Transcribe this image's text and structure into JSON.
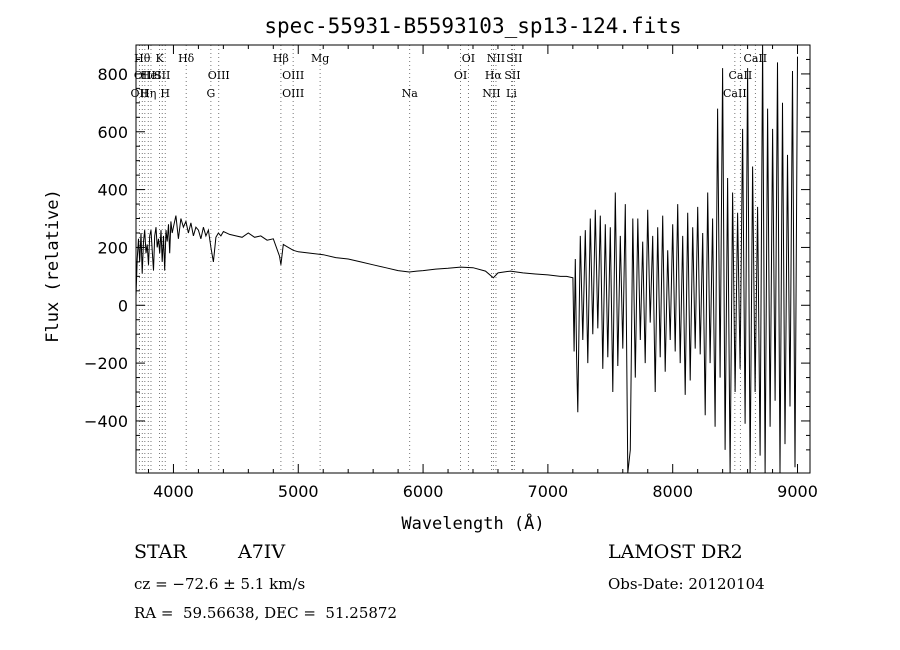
{
  "chart_data": {
    "type": "line",
    "title": "spec-55931-B5593103_sp13-124.fits",
    "xlabel": "Wavelength (Å)",
    "ylabel": "Flux (relative)",
    "xlim": [
      3700,
      9100
    ],
    "ylim": [
      -580,
      900
    ],
    "x_ticks": [
      4000,
      5000,
      6000,
      7000,
      8000,
      9000
    ],
    "x_tick_labels": [
      "4000",
      "5000",
      "6000",
      "7000",
      "8000",
      "9000"
    ],
    "y_ticks": [
      -400,
      -200,
      0,
      200,
      400,
      600,
      800
    ],
    "y_tick_labels": [
      "−400",
      "−200",
      "0",
      "200",
      "400",
      "600",
      "800"
    ],
    "grid": false,
    "series": [
      {
        "x": [
          3700,
          3710,
          3720,
          3730,
          3740,
          3750,
          3760,
          3770,
          3780,
          3790,
          3800,
          3810,
          3820,
          3830,
          3840,
          3850,
          3860,
          3870,
          3880,
          3890,
          3900,
          3910,
          3920,
          3930,
          3940,
          3950,
          3960,
          3970,
          3980,
          3990,
          4000,
          4020,
          4040,
          4060,
          4080,
          4100,
          4120,
          4140,
          4160,
          4180,
          4200,
          4220,
          4240,
          4260,
          4280,
          4300,
          4320,
          4340,
          4360,
          4380,
          4400,
          4450,
          4500,
          4550,
          4600,
          4650,
          4700,
          4750,
          4800,
          4850,
          4861,
          4880,
          4920,
          4960,
          5000,
          5100,
          5200,
          5300,
          5400,
          5500,
          5600,
          5700,
          5800,
          5890,
          5950,
          6000,
          6100,
          6200,
          6300,
          6400,
          6500,
          6563,
          6600,
          6700,
          6800,
          6900,
          7000,
          7100,
          7150,
          7200,
          7210,
          7220,
          7230,
          7240,
          7260,
          7280,
          7300,
          7320,
          7340,
          7360,
          7380,
          7400,
          7420,
          7440,
          7460,
          7480,
          7500,
          7520,
          7540,
          7560,
          7580,
          7600,
          7620,
          7640,
          7660,
          7680,
          7700,
          7720,
          7740,
          7760,
          7780,
          7800,
          7820,
          7840,
          7860,
          7880,
          7900,
          7920,
          7940,
          7960,
          7980,
          8000,
          8020,
          8040,
          8060,
          8080,
          8100,
          8120,
          8140,
          8160,
          8180,
          8200,
          8220,
          8240,
          8260,
          8280,
          8300,
          8320,
          8340,
          8360,
          8380,
          8400,
          8420,
          8440,
          8460,
          8480,
          8500,
          8520,
          8540,
          8560,
          8580,
          8600,
          8620,
          8640,
          8660,
          8680,
          8700,
          8720,
          8740,
          8760,
          8780,
          8800,
          8820,
          8840,
          8860,
          8880,
          8900,
          8920,
          8940,
          8960,
          8980,
          9000
        ],
        "y": [
          30,
          160,
          230,
          150,
          250,
          110,
          220,
          260,
          180,
          210,
          140,
          240,
          260,
          190,
          120,
          240,
          270,
          200,
          230,
          180,
          260,
          150,
          240,
          120,
          260,
          220,
          280,
          180,
          290,
          250,
          270,
          310,
          230,
          300,
          270,
          290,
          250,
          285,
          240,
          270,
          260,
          230,
          270,
          240,
          260,
          200,
          150,
          235,
          250,
          240,
          255,
          245,
          240,
          235,
          250,
          235,
          240,
          225,
          230,
          170,
          140,
          210,
          200,
          190,
          185,
          180,
          175,
          165,
          160,
          150,
          140,
          130,
          120,
          115,
          118,
          120,
          125,
          128,
          132,
          130,
          118,
          95,
          112,
          118,
          112,
          108,
          105,
          100,
          100,
          95,
          -160,
          160,
          -180,
          -370,
          240,
          -120,
          260,
          -200,
          300,
          -100,
          330,
          -80,
          310,
          -220,
          280,
          -180,
          270,
          -300,
          390,
          -210,
          240,
          -150,
          350,
          -580,
          -500,
          300,
          -250,
          300,
          -120,
          220,
          -200,
          330,
          -60,
          240,
          -300,
          270,
          -180,
          310,
          -230,
          190,
          -120,
          280,
          -160,
          350,
          -200,
          240,
          -310,
          320,
          -260,
          270,
          -150,
          340,
          -170,
          250,
          -380,
          390,
          -200,
          300,
          -420,
          680,
          -250,
          820,
          -500,
          440,
          -580,
          390,
          -300,
          320,
          -220,
          610,
          -410,
          820,
          -580,
          480,
          -300,
          340,
          -520,
          900,
          -580,
          680,
          -420,
          610,
          -330,
          840,
          -580,
          700,
          -480,
          520,
          -350,
          810,
          -560,
          860
        ]
      }
    ],
    "line_annotations": [
      {
        "x": 3727,
        "label": "OII",
        "tier": 3
      },
      {
        "x": 3750,
        "label": "Hθ",
        "tier": 1
      },
      {
        "x": 3771,
        "label": "OIII",
        "tier": 2
      },
      {
        "x": 3798,
        "label": "Hη",
        "tier": 3
      },
      {
        "x": 3820,
        "label": "HeI",
        "tier": 2
      },
      {
        "x": 3889,
        "label": "K",
        "tier": 1
      },
      {
        "x": 3910,
        "label": "SII",
        "tier": 2
      },
      {
        "x": 3934,
        "label": "H",
        "tier": 3
      },
      {
        "x": 4102,
        "label": "Hδ",
        "tier": 1
      },
      {
        "x": 4300,
        "label": "G",
        "tier": 3
      },
      {
        "x": 4363,
        "label": "OIII",
        "tier": 2
      },
      {
        "x": 4861,
        "label": "Hβ",
        "tier": 1
      },
      {
        "x": 4959,
        "label": "OIII",
        "tier": 2
      },
      {
        "x": 4959,
        "label": "OIII",
        "tier": 3
      },
      {
        "x": 5175,
        "label": "Mg",
        "tier": 1
      },
      {
        "x": 5893,
        "label": "Na",
        "tier": 3
      },
      {
        "x": 6300,
        "label": "OI",
        "tier": 2
      },
      {
        "x": 6363,
        "label": "OI",
        "tier": 1
      },
      {
        "x": 6548,
        "label": "NII",
        "tier": 3
      },
      {
        "x": 6563,
        "label": "Hα",
        "tier": 2
      },
      {
        "x": 6584,
        "label": "NII",
        "tier": 1
      },
      {
        "x": 6708,
        "label": "Li",
        "tier": 3
      },
      {
        "x": 6716,
        "label": "SII",
        "tier": 2
      },
      {
        "x": 6731,
        "label": "SII",
        "tier": 1
      },
      {
        "x": 8498,
        "label": "CaII",
        "tier": 3
      },
      {
        "x": 8542,
        "label": "CaII",
        "tier": 2
      },
      {
        "x": 8662,
        "label": "CaII",
        "tier": 1
      }
    ]
  },
  "info": {
    "object_class": "STAR",
    "subclass": "A7IV",
    "survey": "LAMOST DR2",
    "cz": "cz = −72.6 ± 5.1 km/s",
    "obs_date": "Obs-Date: 20120104",
    "coords": "RA =  59.56638, DEC =  51.25872"
  }
}
